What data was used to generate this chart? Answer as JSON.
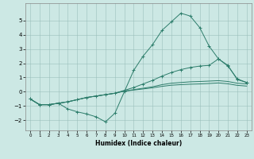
{
  "xlabel": "Humidex (Indice chaleur)",
  "xlim": [
    -0.5,
    23.5
  ],
  "ylim": [
    -2.7,
    6.2
  ],
  "xticks": [
    0,
    1,
    2,
    3,
    4,
    5,
    6,
    7,
    8,
    9,
    10,
    11,
    12,
    13,
    14,
    15,
    16,
    17,
    18,
    19,
    20,
    21,
    22,
    23
  ],
  "yticks": [
    -2,
    -1,
    0,
    1,
    2,
    3,
    4,
    5
  ],
  "line_color": "#2d7d6b",
  "bg_color": "#cce8e4",
  "series": [
    {
      "x": [
        0,
        1,
        2,
        3,
        4,
        5,
        6,
        7,
        8,
        9,
        10,
        11,
        12,
        13,
        14,
        15,
        16,
        17,
        18,
        19,
        20,
        21,
        22,
        23
      ],
      "y": [
        -0.5,
        -0.9,
        -0.9,
        -0.8,
        -1.2,
        -1.4,
        -1.55,
        -1.75,
        -2.1,
        -1.5,
        0.0,
        1.5,
        2.5,
        3.3,
        4.3,
        4.9,
        5.5,
        5.3,
        4.5,
        3.2,
        2.3,
        1.8,
        0.9,
        0.65
      ],
      "marker": true
    },
    {
      "x": [
        0,
        1,
        2,
        3,
        4,
        5,
        6,
        7,
        8,
        9,
        10,
        11,
        12,
        13,
        14,
        15,
        16,
        17,
        18,
        19,
        20,
        21,
        22,
        23
      ],
      "y": [
        -0.5,
        -0.9,
        -0.9,
        -0.8,
        -0.7,
        -0.55,
        -0.4,
        -0.3,
        -0.2,
        -0.1,
        0.1,
        0.3,
        0.55,
        0.8,
        1.1,
        1.35,
        1.55,
        1.7,
        1.8,
        1.85,
        2.3,
        1.85,
        0.85,
        0.65
      ],
      "marker": true
    },
    {
      "x": [
        0,
        1,
        2,
        3,
        4,
        5,
        6,
        7,
        8,
        9,
        10,
        11,
        12,
        13,
        14,
        15,
        16,
        17,
        18,
        19,
        20,
        21,
        22,
        23
      ],
      "y": [
        -0.5,
        -0.9,
        -0.9,
        -0.8,
        -0.7,
        -0.55,
        -0.4,
        -0.3,
        -0.2,
        -0.1,
        0.05,
        0.15,
        0.25,
        0.35,
        0.5,
        0.6,
        0.65,
        0.7,
        0.72,
        0.75,
        0.78,
        0.72,
        0.6,
        0.55
      ],
      "marker": false
    },
    {
      "x": [
        0,
        1,
        2,
        3,
        4,
        5,
        6,
        7,
        8,
        9,
        10,
        11,
        12,
        13,
        14,
        15,
        16,
        17,
        18,
        19,
        20,
        21,
        22,
        23
      ],
      "y": [
        -0.5,
        -0.9,
        -0.9,
        -0.8,
        -0.7,
        -0.55,
        -0.4,
        -0.3,
        -0.2,
        -0.1,
        0.05,
        0.12,
        0.2,
        0.28,
        0.38,
        0.46,
        0.5,
        0.53,
        0.55,
        0.58,
        0.62,
        0.56,
        0.45,
        0.4
      ],
      "marker": false
    }
  ]
}
